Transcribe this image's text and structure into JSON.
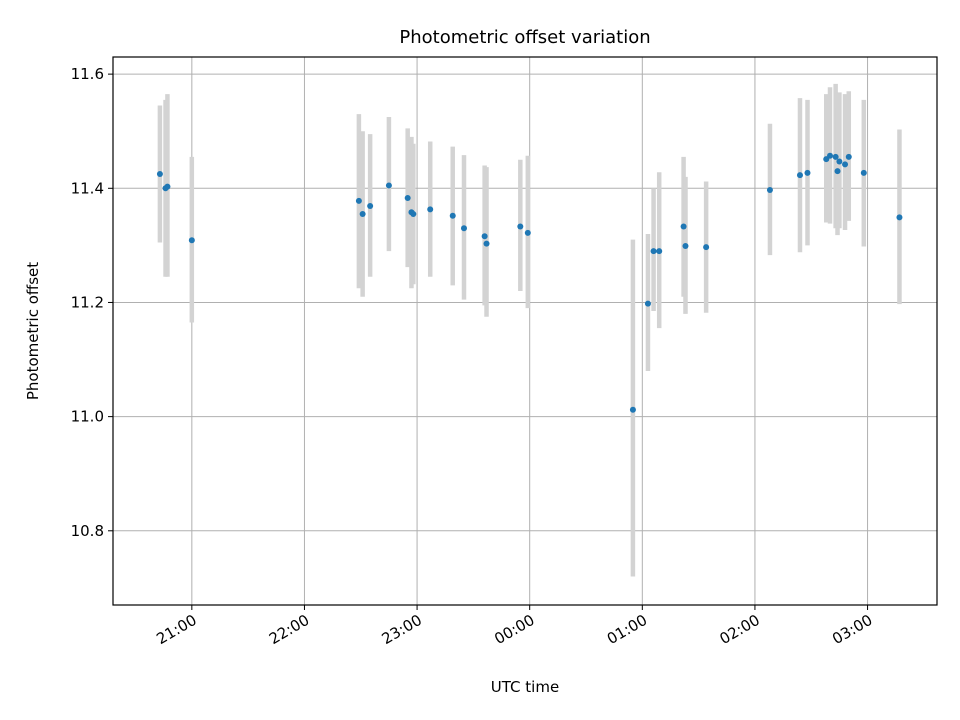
{
  "chart_data": {
    "type": "scatter",
    "title": "Photometric offset variation",
    "xlabel": "UTC time",
    "ylabel": "Photometric offset",
    "x_unit": "UTC time of night",
    "xlim": [
      "20:18",
      "03:37"
    ],
    "ylim": [
      10.67,
      11.63
    ],
    "x_ticks": [
      "21:00",
      "22:00",
      "23:00",
      "00:00",
      "01:00",
      "02:00",
      "03:00"
    ],
    "y_ticks": [
      "10.8",
      "11.0",
      "11.2",
      "11.4",
      "11.6"
    ],
    "y_tick_values": [
      10.8,
      11.0,
      11.2,
      11.4,
      11.6
    ],
    "grid": true,
    "point_color": "#1f77b4",
    "errorbar_color": "#d3d3d3",
    "points": [
      {
        "x": "20:43",
        "y": 11.425,
        "ylo": 11.305,
        "yhi": 11.545
      },
      {
        "x": "20:46",
        "y": 11.4,
        "ylo": 11.245,
        "yhi": 11.555
      },
      {
        "x": "20:47",
        "y": 11.403,
        "ylo": 11.245,
        "yhi": 11.565
      },
      {
        "x": "21:00",
        "y": 11.309,
        "ylo": 11.165,
        "yhi": 11.455
      },
      {
        "x": "22:29",
        "y": 11.378,
        "ylo": 11.225,
        "yhi": 11.53
      },
      {
        "x": "22:31",
        "y": 11.355,
        "ylo": 11.21,
        "yhi": 11.5
      },
      {
        "x": "22:35",
        "y": 11.369,
        "ylo": 11.245,
        "yhi": 11.495
      },
      {
        "x": "22:45",
        "y": 11.405,
        "ylo": 11.29,
        "yhi": 11.525
      },
      {
        "x": "22:55",
        "y": 11.383,
        "ylo": 11.262,
        "yhi": 11.505
      },
      {
        "x": "22:57",
        "y": 11.358,
        "ylo": 11.225,
        "yhi": 11.49
      },
      {
        "x": "22:58",
        "y": 11.355,
        "ylo": 11.232,
        "yhi": 11.478
      },
      {
        "x": "23:07",
        "y": 11.363,
        "ylo": 11.245,
        "yhi": 11.482
      },
      {
        "x": "23:19",
        "y": 11.352,
        "ylo": 11.23,
        "yhi": 11.473
      },
      {
        "x": "23:25",
        "y": 11.33,
        "ylo": 11.205,
        "yhi": 11.458
      },
      {
        "x": "23:36",
        "y": 11.316,
        "ylo": 11.195,
        "yhi": 11.44
      },
      {
        "x": "23:37",
        "y": 11.303,
        "ylo": 11.175,
        "yhi": 11.437
      },
      {
        "x": "23:55",
        "y": 11.333,
        "ylo": 11.22,
        "yhi": 11.45
      },
      {
        "x": "23:59",
        "y": 11.322,
        "ylo": 11.19,
        "yhi": 11.457
      },
      {
        "x": "00:55",
        "y": 11.012,
        "ylo": 10.72,
        "yhi": 11.31
      },
      {
        "x": "01:03",
        "y": 11.198,
        "ylo": 11.08,
        "yhi": 11.32
      },
      {
        "x": "01:06",
        "y": 11.29,
        "ylo": 11.185,
        "yhi": 11.4
      },
      {
        "x": "01:09",
        "y": 11.29,
        "ylo": 11.155,
        "yhi": 11.428
      },
      {
        "x": "01:22",
        "y": 11.333,
        "ylo": 11.21,
        "yhi": 11.455
      },
      {
        "x": "01:23",
        "y": 11.299,
        "ylo": 11.18,
        "yhi": 11.42
      },
      {
        "x": "01:34",
        "y": 11.297,
        "ylo": 11.182,
        "yhi": 11.412
      },
      {
        "x": "02:08",
        "y": 11.397,
        "ylo": 11.283,
        "yhi": 11.513
      },
      {
        "x": "02:24",
        "y": 11.423,
        "ylo": 11.288,
        "yhi": 11.558
      },
      {
        "x": "02:28",
        "y": 11.427,
        "ylo": 11.3,
        "yhi": 11.555
      },
      {
        "x": "02:38",
        "y": 11.451,
        "ylo": 11.34,
        "yhi": 11.565
      },
      {
        "x": "02:40",
        "y": 11.457,
        "ylo": 11.338,
        "yhi": 11.577
      },
      {
        "x": "02:43",
        "y": 11.455,
        "ylo": 11.33,
        "yhi": 11.583
      },
      {
        "x": "02:44",
        "y": 11.43,
        "ylo": 11.318,
        "yhi": 11.542
      },
      {
        "x": "02:45",
        "y": 11.447,
        "ylo": 11.33,
        "yhi": 11.568
      },
      {
        "x": "02:48",
        "y": 11.442,
        "ylo": 11.327,
        "yhi": 11.565
      },
      {
        "x": "02:50",
        "y": 11.455,
        "ylo": 11.343,
        "yhi": 11.57
      },
      {
        "x": "02:58",
        "y": 11.427,
        "ylo": 11.298,
        "yhi": 11.555
      },
      {
        "x": "03:17",
        "y": 11.349,
        "ylo": 11.197,
        "yhi": 11.503
      }
    ]
  }
}
